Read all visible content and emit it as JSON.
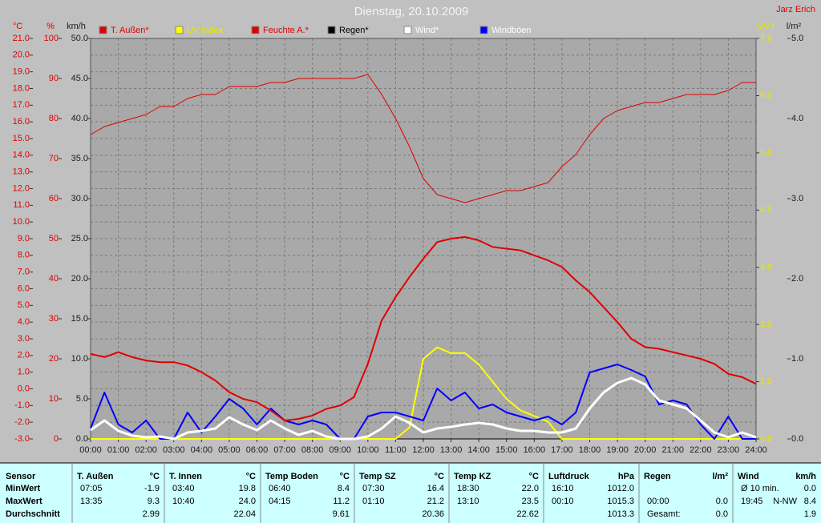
{
  "chart_data": {
    "type": "line",
    "title": "Dienstag, 20.10.2009",
    "author": "Jarz Erich",
    "grid": true,
    "xlim": [
      0,
      24
    ],
    "xticks": [
      {
        "value": 0,
        "label": "00:00"
      },
      {
        "value": 1,
        "label": "01:00"
      },
      {
        "value": 2,
        "label": "02:00"
      },
      {
        "value": 3,
        "label": "03:00"
      },
      {
        "value": 4,
        "label": "04:00"
      },
      {
        "value": 5,
        "label": "05:00"
      },
      {
        "value": 6,
        "label": "06:00"
      },
      {
        "value": 7,
        "label": "07:00"
      },
      {
        "value": 8,
        "label": "08:00"
      },
      {
        "value": 9,
        "label": "09:00"
      },
      {
        "value": 10,
        "label": "10:00"
      },
      {
        "value": 11,
        "label": "11:00"
      },
      {
        "value": 12,
        "label": "12:00"
      },
      {
        "value": 13,
        "label": "13:00"
      },
      {
        "value": 14,
        "label": "14:00"
      },
      {
        "value": 15,
        "label": "15:00"
      },
      {
        "value": 16,
        "label": "16:00"
      },
      {
        "value": 17,
        "label": "17:00"
      },
      {
        "value": 18,
        "label": "18:00"
      },
      {
        "value": 19,
        "label": "19:00"
      },
      {
        "value": 20,
        "label": "20:00"
      },
      {
        "value": 21,
        "label": "21:00"
      },
      {
        "value": 22,
        "label": "22:00"
      },
      {
        "value": 23,
        "label": "23:00"
      },
      {
        "value": 24,
        "label": "24:00"
      }
    ],
    "ylabel": "°C",
    "ylim": [
      -3,
      21
    ],
    "yticks": [
      {
        "value": -3,
        "label": "-3.0"
      },
      {
        "value": -2,
        "label": "-2.0"
      },
      {
        "value": -1,
        "label": "-1.0"
      },
      {
        "value": 0,
        "label": "0.0"
      },
      {
        "value": 1,
        "label": "1.0"
      },
      {
        "value": 2,
        "label": "2.0"
      },
      {
        "value": 3,
        "label": "3.0"
      },
      {
        "value": 4,
        "label": "4.0"
      },
      {
        "value": 5,
        "label": "5.0"
      },
      {
        "value": 6,
        "label": "6.0"
      },
      {
        "value": 7,
        "label": "7.0"
      },
      {
        "value": 8,
        "label": "8.0"
      },
      {
        "value": 9,
        "label": "9.0"
      },
      {
        "value": 10,
        "label": "10.0"
      },
      {
        "value": 11,
        "label": "11.0"
      },
      {
        "value": 12,
        "label": "12.0"
      },
      {
        "value": 13,
        "label": "13.0"
      },
      {
        "value": 14,
        "label": "14.0"
      },
      {
        "value": 15,
        "label": "15.0"
      },
      {
        "value": 16,
        "label": "16.0"
      },
      {
        "value": 17,
        "label": "17.0"
      },
      {
        "value": 18,
        "label": "18.0"
      },
      {
        "value": 19,
        "label": "19.0"
      },
      {
        "value": 20,
        "label": "20.0"
      },
      {
        "value": 21,
        "label": "21.0"
      }
    ],
    "y2label": "%",
    "y2lim": [
      0,
      100
    ],
    "y2ticks": [
      0,
      10,
      20,
      30,
      40,
      50,
      60,
      70,
      80,
      90,
      100
    ],
    "y3label": "km/h",
    "y3lim": [
      0,
      50
    ],
    "y3ticks": [
      {
        "value": 0,
        "label": "0.0"
      },
      {
        "value": 5,
        "label": "5.0"
      },
      {
        "value": 10,
        "label": "10.0"
      },
      {
        "value": 15,
        "label": "15.0"
      },
      {
        "value": 20,
        "label": "20.0"
      },
      {
        "value": 25,
        "label": "25.0"
      },
      {
        "value": 30,
        "label": "30.0"
      },
      {
        "value": 35,
        "label": "35.0"
      },
      {
        "value": 40,
        "label": "40.0"
      },
      {
        "value": 45,
        "label": "45.0"
      },
      {
        "value": 50,
        "label": "50.0"
      }
    ],
    "y4label": "UV-I",
    "y4lim": [
      0,
      7
    ],
    "y4ticks": [
      {
        "value": 0,
        "label": "0.0"
      },
      {
        "value": 1,
        "label": "1.0"
      },
      {
        "value": 2,
        "label": "2.0"
      },
      {
        "value": 3,
        "label": "3.0"
      },
      {
        "value": 4,
        "label": "4.0"
      },
      {
        "value": 5,
        "label": "5.0"
      },
      {
        "value": 6,
        "label": "6.0"
      },
      {
        "value": 7,
        "label": "7.0"
      }
    ],
    "y5label": "l/m²",
    "y5lim": [
      0,
      5
    ],
    "y5ticks": [
      {
        "value": 0,
        "label": "0.0"
      },
      {
        "value": 1,
        "label": "1.0"
      },
      {
        "value": 2,
        "label": "2.0"
      },
      {
        "value": 3,
        "label": "3.0"
      },
      {
        "value": 4,
        "label": "4.0"
      },
      {
        "value": 5,
        "label": "5.0"
      }
    ],
    "x": [
      0,
      0.5,
      1,
      1.5,
      2,
      2.5,
      3,
      3.5,
      4,
      4.5,
      5,
      5.5,
      6,
      6.5,
      7,
      7.5,
      8,
      8.5,
      9,
      9.5,
      10,
      10.5,
      11,
      11.5,
      12,
      12.5,
      13,
      13.5,
      14,
      14.5,
      15,
      15.5,
      16,
      16.5,
      17,
      17.5,
      18,
      18.5,
      19,
      19.5,
      20,
      20.5,
      21,
      21.5,
      22,
      22.5,
      23,
      23.5,
      24
    ],
    "series": [
      {
        "name": "T. Außen*",
        "color": "#e00000",
        "axis": "y",
        "width": 2,
        "values": [
          2.1,
          1.9,
          2.2,
          1.9,
          1.7,
          1.6,
          1.6,
          1.4,
          1.0,
          0.5,
          -0.2,
          -0.6,
          -0.8,
          -1.3,
          -1.9,
          -1.8,
          -1.6,
          -1.2,
          -1.0,
          -0.5,
          1.5,
          4.1,
          5.5,
          6.7,
          7.8,
          8.8,
          9.0,
          9.1,
          8.9,
          8.5,
          8.4,
          8.3,
          8.0,
          7.7,
          7.3,
          6.5,
          5.8,
          4.9,
          4.0,
          3.0,
          2.5,
          2.4,
          2.2,
          2.0,
          1.8,
          1.5,
          0.9,
          0.7,
          0.3
        ]
      },
      {
        "name": "UV Index",
        "color": "#ffff00",
        "axis": "y4",
        "width": 2,
        "values": [
          0,
          0,
          0,
          0,
          0,
          0,
          0,
          0,
          0,
          0,
          0,
          0,
          0,
          0,
          0,
          0,
          0,
          0,
          0,
          0,
          0,
          0,
          0,
          0.2,
          1.4,
          1.6,
          1.5,
          1.5,
          1.3,
          1.0,
          0.7,
          0.5,
          0.4,
          0.3,
          0,
          0,
          0,
          0,
          0,
          0,
          0,
          0,
          0,
          0,
          0,
          0,
          0,
          0,
          0
        ]
      },
      {
        "name": "Feuchte A.*",
        "color": "#e00000",
        "axis": "y2",
        "width": 1,
        "values": [
          76,
          78,
          79,
          80,
          81,
          83,
          83,
          85,
          86,
          86,
          88,
          88,
          88,
          89,
          89,
          90,
          90,
          90,
          90,
          90,
          91,
          86,
          80,
          73,
          65,
          61,
          60,
          59,
          60,
          61,
          62,
          62,
          63,
          64,
          68,
          71,
          76,
          80,
          82,
          83,
          84,
          84,
          85,
          86,
          86,
          86,
          87,
          89,
          89
        ]
      },
      {
        "name": "Regen*",
        "color": "#000000",
        "axis": "y5",
        "width": 1,
        "values": [
          0,
          0,
          0,
          0,
          0,
          0,
          0,
          0,
          0,
          0,
          0,
          0,
          0,
          0,
          0,
          0,
          0,
          0,
          0,
          0,
          0,
          0,
          0,
          0,
          0,
          0,
          0,
          0,
          0,
          0,
          0,
          0,
          0,
          0,
          0,
          0,
          0,
          0,
          0,
          0,
          0,
          0,
          0,
          0,
          0,
          0,
          0,
          0,
          0
        ]
      },
      {
        "name": "Windböen",
        "color": "#0000ff",
        "axis": "y3",
        "width": 2,
        "values": [
          1.3,
          5.8,
          1.8,
          0.8,
          2.3,
          0,
          0,
          3.3,
          0.8,
          2.8,
          5.0,
          3.8,
          1.8,
          3.8,
          2.3,
          1.8,
          2.3,
          1.8,
          0,
          0,
          2.8,
          3.3,
          3.3,
          2.8,
          2.3,
          6.3,
          4.8,
          5.8,
          3.8,
          4.3,
          3.3,
          2.8,
          2.3,
          2.8,
          1.8,
          3.3,
          8.3,
          8.8,
          9.3,
          8.6,
          7.8,
          4.3,
          4.8,
          4.3,
          1.8,
          0,
          2.8,
          0,
          0
        ]
      },
      {
        "name": "Wind*",
        "color": "#ffffff",
        "axis": "y3",
        "width": 3,
        "values": [
          1.1,
          2.3,
          1.0,
          0.4,
          0.2,
          0.3,
          0,
          0.8,
          1.0,
          1.3,
          2.7,
          1.8,
          1.1,
          2.3,
          1.3,
          0.5,
          1.0,
          0.3,
          0,
          0,
          0.3,
          1.3,
          2.8,
          2.0,
          0.8,
          1.3,
          1.5,
          1.8,
          2.0,
          1.8,
          1.3,
          1.0,
          1.0,
          0.8,
          0.8,
          1.3,
          3.8,
          5.8,
          7.0,
          7.6,
          6.8,
          4.8,
          4.3,
          3.8,
          2.3,
          0.8,
          0.2,
          0.8,
          0.2
        ]
      }
    ],
    "legend_order": [
      0,
      1,
      2,
      3,
      5,
      4
    ]
  },
  "table": {
    "row_labels": [
      "Sensor",
      "MinWert",
      "MaxWert",
      "Durchschnitt"
    ],
    "groups": [
      {
        "name": "T. Außen",
        "unit": "°C",
        "rows": [
          [
            "07:05",
            "-1.9"
          ],
          [
            "13:35",
            "9.3"
          ],
          [
            "2.99"
          ]
        ]
      },
      {
        "name": "T. Innen",
        "unit": "°C",
        "rows": [
          [
            "03:40",
            "19.8"
          ],
          [
            "10:40",
            "24.0"
          ],
          [
            "22.04"
          ]
        ]
      },
      {
        "name": "Temp Boden",
        "unit": "°C",
        "rows": [
          [
            "06:40",
            "8.4"
          ],
          [
            "04:15",
            "11.2"
          ],
          [
            "9.61"
          ]
        ]
      },
      {
        "name": "Temp SZ",
        "unit": "°C",
        "rows": [
          [
            "07:30",
            "16.4"
          ],
          [
            "01:10",
            "21.2"
          ],
          [
            "20.36"
          ]
        ]
      },
      {
        "name": "Temp KZ",
        "unit": "°C",
        "rows": [
          [
            "18:30",
            "22.0"
          ],
          [
            "13:10",
            "23.5"
          ],
          [
            "22.62"
          ]
        ]
      },
      {
        "name": "Luftdruck",
        "unit": "hPa",
        "rows": [
          [
            "16:10",
            "1012.0"
          ],
          [
            "00:10",
            "1015.3"
          ],
          [
            "1013.3"
          ]
        ]
      },
      {
        "name": "Regen",
        "unit": "l/m²",
        "rows": [
          [],
          [
            "00:00",
            "0.0"
          ],
          [
            "Gesamt:",
            "0.0"
          ]
        ]
      },
      {
        "name": "Wind",
        "unit": "km/h",
        "rows": [
          [
            "Ø 10 min.",
            "0.0"
          ],
          [
            "19:45",
            "N-NW",
            "8.4"
          ],
          [
            "1.9"
          ]
        ]
      }
    ]
  }
}
